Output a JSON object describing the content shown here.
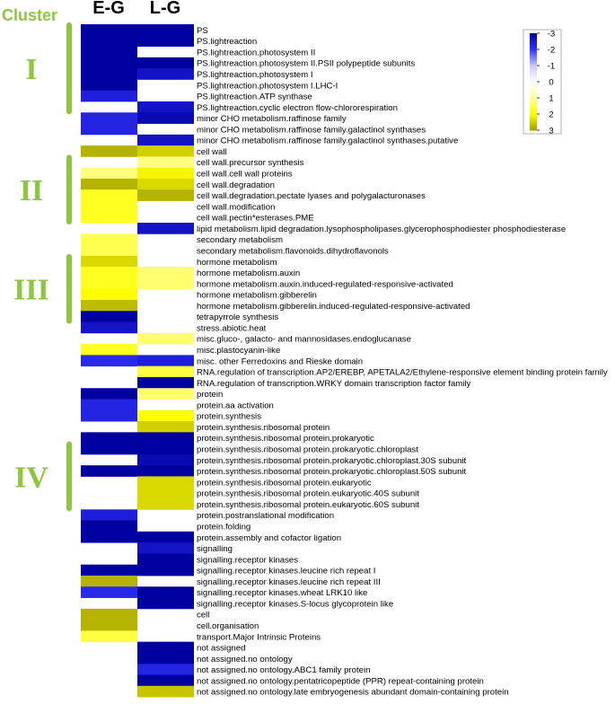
{
  "chart_data": {
    "type": "heatmap",
    "cluster_header": "Cluster",
    "columns": [
      "E-G",
      "L-G"
    ],
    "clusters": [
      {
        "label": "I",
        "start": 0,
        "end": 7
      },
      {
        "label": "II",
        "start": 12,
        "end": 17
      },
      {
        "label": "III",
        "start": 21,
        "end": 26
      },
      {
        "label": "IV",
        "start": 38,
        "end": 43
      }
    ],
    "legend": {
      "ticks": [
        {
          "label": "-3",
          "value": -3
        },
        {
          "label": "-2",
          "value": -2
        },
        {
          "label": "-1",
          "value": -1
        },
        {
          "label": "0",
          "value": 0
        },
        {
          "label": "1",
          "value": 1
        },
        {
          "label": "2",
          "value": 2
        },
        {
          "label": "3",
          "value": 3
        }
      ],
      "range": [
        -3,
        3
      ],
      "colors": {
        "neg_max": "#0000a0",
        "neg_mid": "#3333ff",
        "neg_low": "#c8c8ff",
        "zero": "#ffffff",
        "pos_low": "#ffffa0",
        "pos_mid": "#ffff00",
        "pos_max": "#a0a000"
      }
    },
    "rows": [
      {
        "label": "PS",
        "values": [
          -3,
          -3
        ]
      },
      {
        "label": "PS.lightreaction",
        "values": [
          -3,
          -3
        ]
      },
      {
        "label": "PS.lightreaction.photosystem II",
        "values": [
          -3,
          null
        ]
      },
      {
        "label": "PS.lightreaction.photosystem II.PSII polypeptide subunits",
        "values": [
          -3,
          -3
        ]
      },
      {
        "label": "PS.lightreaction.photosystem I",
        "values": [
          -3,
          -2.6
        ]
      },
      {
        "label": "PS.lightreaction.photosystem I.LHC-I",
        "values": [
          -3,
          null
        ]
      },
      {
        "label": "PS.lightreaction.ATP synthase",
        "values": [
          -2.4,
          null
        ]
      },
      {
        "label": "PS.lightreaction.cyclic electron flow-chlororespiration",
        "values": [
          null,
          -2.6
        ]
      },
      {
        "label": "minor CHO metabolism.raffinose family",
        "values": [
          -2.3,
          -2.8
        ]
      },
      {
        "label": "minor CHO metabolism.raffinose family.galactinol synthases",
        "values": [
          -2.3,
          null
        ]
      },
      {
        "label": "minor CHO metabolism.raffinose family.galactinol synthases.putative",
        "values": [
          null,
          -2.6
        ]
      },
      {
        "label": "cell wall",
        "values": [
          2.8,
          2.5
        ]
      },
      {
        "label": "cell wall.precursor synthesis",
        "values": [
          null,
          1.2
        ]
      },
      {
        "label": "cell wall.cell wall proteins",
        "values": [
          1.2,
          2.1
        ]
      },
      {
        "label": "cell wall.degradation",
        "values": [
          2.8,
          2.4
        ]
      },
      {
        "label": "cell wall.degradation.pectate lyases and polygalacturonases",
        "values": [
          1.8,
          2.8
        ]
      },
      {
        "label": "cell wall.modification",
        "values": [
          1.8,
          null
        ]
      },
      {
        "label": "cell wall.pectin*esterases.PME",
        "values": [
          1.8,
          null
        ]
      },
      {
        "label": "lipid metabolism.lipid degradation.lysophospholipases.glycerophosphodiester phosphodiesterase",
        "values": [
          null,
          -2.6
        ]
      },
      {
        "label": "secondary metabolism",
        "values": [
          1.5,
          null
        ]
      },
      {
        "label": "secondary metabolism.flavonoids.dihydroflavonols",
        "values": [
          1.5,
          null
        ]
      },
      {
        "label": "hormone metabolism",
        "values": [
          2.4,
          null
        ]
      },
      {
        "label": "hormone metabolism.auxin",
        "values": [
          1.8,
          1.3
        ]
      },
      {
        "label": "hormone metabolism.auxin.induced-regulated-responsive-activated",
        "values": [
          1.8,
          1.3
        ]
      },
      {
        "label": "hormone metabolism.gibberelin",
        "values": [
          2.0,
          null
        ]
      },
      {
        "label": "hormone metabolism.gibberelin.induced-regulated-responsive-activated",
        "values": [
          2.7,
          null
        ]
      },
      {
        "label": "tetrapyrrole synthesis",
        "values": [
          -3,
          null
        ]
      },
      {
        "label": "stress.abiotic.heat",
        "values": [
          -2.6,
          null
        ]
      },
      {
        "label": "misc.gluco-, galacto- and mannosidases.endoglucanase",
        "values": [
          null,
          1.3
        ]
      },
      {
        "label": "misc.plastocyanin-like",
        "values": [
          1.8,
          null
        ]
      },
      {
        "label": "misc. other Ferredoxins and Rieske domain",
        "values": [
          -2.2,
          -2.4
        ]
      },
      {
        "label": "RNA.regulation of transcription.AP2/EREBP, APETALA2/Ethylene-responsive element binding protein family",
        "values": [
          null,
          1.6
        ]
      },
      {
        "label": "RNA.regulation of transcription.WRKY domain transcription factor family",
        "values": [
          null,
          -3
        ]
      },
      {
        "label": "protein",
        "values": [
          -3,
          1.3
        ]
      },
      {
        "label": "protein.aa activation",
        "values": [
          -2.3,
          null
        ]
      },
      {
        "label": "protein.synthesis",
        "values": [
          -2.3,
          2.0
        ]
      },
      {
        "label": "protein.synthesis.ribosomal protein",
        "values": [
          null,
          2.5
        ]
      },
      {
        "label": "protein.synthesis.ribosomal protein.prokaryotic",
        "values": [
          -3,
          -3
        ]
      },
      {
        "label": "protein.synthesis.ribosomal protein.prokaryotic.chloroplast",
        "values": [
          -3,
          -3
        ]
      },
      {
        "label": "protein.synthesis.ribosomal protein.prokaryotic.chloroplast.30S subunit",
        "values": [
          null,
          -2.8
        ]
      },
      {
        "label": "protein.synthesis.ribosomal protein.prokaryotic.chloroplast.50S subunit",
        "values": [
          -3,
          -3
        ]
      },
      {
        "label": "protein.synthesis.ribosomal protein.eukaryotic",
        "values": [
          null,
          2.4
        ]
      },
      {
        "label": "protein.synthesis.ribosomal protein.eukaryotic.40S subunit",
        "values": [
          null,
          2.4
        ]
      },
      {
        "label": "protein.synthesis.ribosomal protein.eukaryotic.60S subunit",
        "values": [
          null,
          2.4
        ]
      },
      {
        "label": "protein.postranslational modification",
        "values": [
          -2.4,
          null
        ]
      },
      {
        "label": "protein.folding",
        "values": [
          -3,
          null
        ]
      },
      {
        "label": "protein.assembly and cofactor ligation",
        "values": [
          -3,
          -3
        ]
      },
      {
        "label": "signalling",
        "values": [
          null,
          -2.6
        ]
      },
      {
        "label": "signalling.receptor kinases",
        "values": [
          null,
          -3
        ]
      },
      {
        "label": "signalling.receptor kinases.leucine rich repeat I",
        "values": [
          -3,
          -3
        ]
      },
      {
        "label": "signalling.receptor kinases.leucine rich repeat III",
        "values": [
          2.8,
          null
        ]
      },
      {
        "label": "signalling.receptor kinases.wheat LRK10 like",
        "values": [
          -2.2,
          -3
        ]
      },
      {
        "label": "signalling.receptor kinases.S-locus glycoprotein like",
        "values": [
          null,
          -3
        ]
      },
      {
        "label": "cell",
        "values": [
          2.8,
          null
        ]
      },
      {
        "label": "cell.organisation",
        "values": [
          2.8,
          null
        ]
      },
      {
        "label": "transport.Major Intrinsic Proteins",
        "values": [
          1.6,
          null
        ]
      },
      {
        "label": "not assigned",
        "values": [
          null,
          -3
        ]
      },
      {
        "label": "not assigned.no ontology",
        "values": [
          null,
          -3
        ]
      },
      {
        "label": "not assigned.no ontology.ABC1 family protein",
        "values": [
          null,
          -2.3
        ]
      },
      {
        "label": "not assigned.no ontology.pentatricopeptide (PPR) repeat-containing protein",
        "values": [
          null,
          -3
        ]
      },
      {
        "label": "not assigned.no ontology.late embryogenesis abundant domain-containing protein",
        "values": [
          null,
          2.6
        ]
      }
    ]
  }
}
